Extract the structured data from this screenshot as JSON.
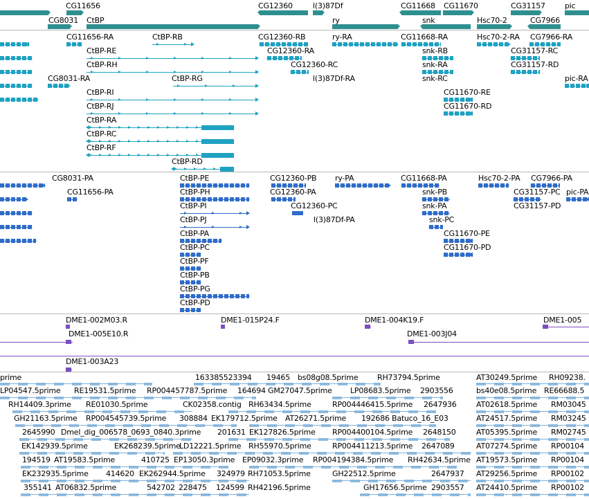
{
  "colors": {
    "gene": "#2f8f8f",
    "transcript_ra": "#1fa2c2",
    "transcript_pa": "#2f6cc9",
    "clone": "#7b4fc0",
    "est": "#7fb2db",
    "separator": "#b8b8b8"
  },
  "tracks": {
    "genes": {
      "labels": [
        "CG11656",
        "CG8031",
        "CtBP",
        "CG12360",
        "l(3)87Df",
        "ry",
        "CG11668",
        "snk",
        "CG11670",
        "Hsc70-2",
        "CG31157",
        "CG7966",
        "pic"
      ]
    },
    "transcripts_ra": {
      "labels": [
        "CG11656-RA",
        "CtBP-RB",
        "CtBP-RE",
        "CtBP-RH",
        "CG8031-RA",
        "CtBP-RG",
        "CtBP-RI",
        "CtBP-RJ",
        "CtBP-RA",
        "CtBP-RC",
        "CtBP-RF",
        "CtBP-RD",
        "CG12360-RB",
        "CG12360-RA",
        "CG12360-RC",
        "l(3)87Df-RA",
        "ry-RA",
        "CG11668-RA",
        "snk-RB",
        "snk-RA",
        "snk-RC",
        "CG11670-RE",
        "CG11670-RD",
        "Hsc70-2-RA",
        "CG7966-RA",
        "CG31157-RC",
        "CG31157-RD",
        "pic-RA"
      ]
    },
    "transcripts_pa": {
      "labels": [
        "CG8031-PA",
        "CG11656-PA",
        "CtBP-PE",
        "CtBP-PH",
        "CtBP-PI",
        "CtBP-PJ",
        "CtBP-PA",
        "CtBP-PC",
        "CtBP-PF",
        "CtBP-PB",
        "CtBP-PG",
        "CtBP-PD",
        "CG12360-PB",
        "CG12360-PA",
        "CG12360-PC",
        "l(3)87Df-PA",
        "ry-PA",
        "CG11668-PA",
        "snk-PB",
        "snk-PA",
        "snk-PC",
        "CG11670-PE",
        "CG11670-PD",
        "Hsc70-2-PA",
        "CG7966-PA",
        "CG31157-PC",
        "pic-PA",
        "CG31157-PD"
      ]
    },
    "clones": {
      "labels": [
        "DME1-002M03.R",
        "DME1-015P24.F",
        "DME1-004K19.F",
        "DME1-005",
        "DME1-005E10.R",
        "DME1-003J04",
        "DME1-003A23"
      ]
    },
    "ests": {
      "labels": [
        "prime",
        "163385523394",
        "19465",
        "bs08g08.5prime",
        "RH73794.5prime",
        "AT30249.5prime",
        "RH09238.",
        "LP04547.5prime",
        "RE19531.5prime",
        "RP004457787.5prime",
        "164694",
        "GM27047.5prime",
        "LP08683.5prime",
        "2903556",
        "bs40e08.5prime",
        "RE66688.5",
        "RH14409.3prime",
        "RE01030.5prime",
        "CK02358.contig",
        "RH63434.5prime",
        "RP004446415.5prime",
        "2647936",
        "AT02618.5prime",
        "RM03045",
        "GH21163.5prime",
        "RP004545739.5prime",
        "308884",
        "EK179712.5prime",
        "AT26271.5prime",
        "192686",
        "Batuco_16_E03",
        "AT24517.5prime",
        "RM03245",
        "2645990",
        "Dmel_dig_006578_0693_0840.3prime",
        "201631",
        "EK127826.5prime",
        "RP004400104.5prime",
        "2648150",
        "AT05395.5prime",
        "RM02745",
        "EK142939.5prime",
        "EK268239.5prime",
        "LD12221.5prime",
        "RH55970.5prime",
        "RP004411213.5prime",
        "2647089",
        "AT07274.5prime",
        "RP00104",
        "194519",
        "AT19583.5prime",
        "410725",
        "EP13050.3prime",
        "EP09032.3prime",
        "RP004194384.5prime",
        "RH42634.5prime",
        "AT19573.5prime",
        "RP00104",
        "EK232935.5prime",
        "414620",
        "EK262944.5prime",
        "324979",
        "RH71053.5prime",
        "GH22512.5prime",
        "2647937",
        "AT29256.5prime",
        "RP00102",
        "355141",
        "AT06832.5prime",
        "542702",
        "228475",
        "124599",
        "RH42196.5prime",
        "GH17656.5prime",
        "2903557",
        "AT24410.5prime",
        "RP00102"
      ]
    }
  }
}
